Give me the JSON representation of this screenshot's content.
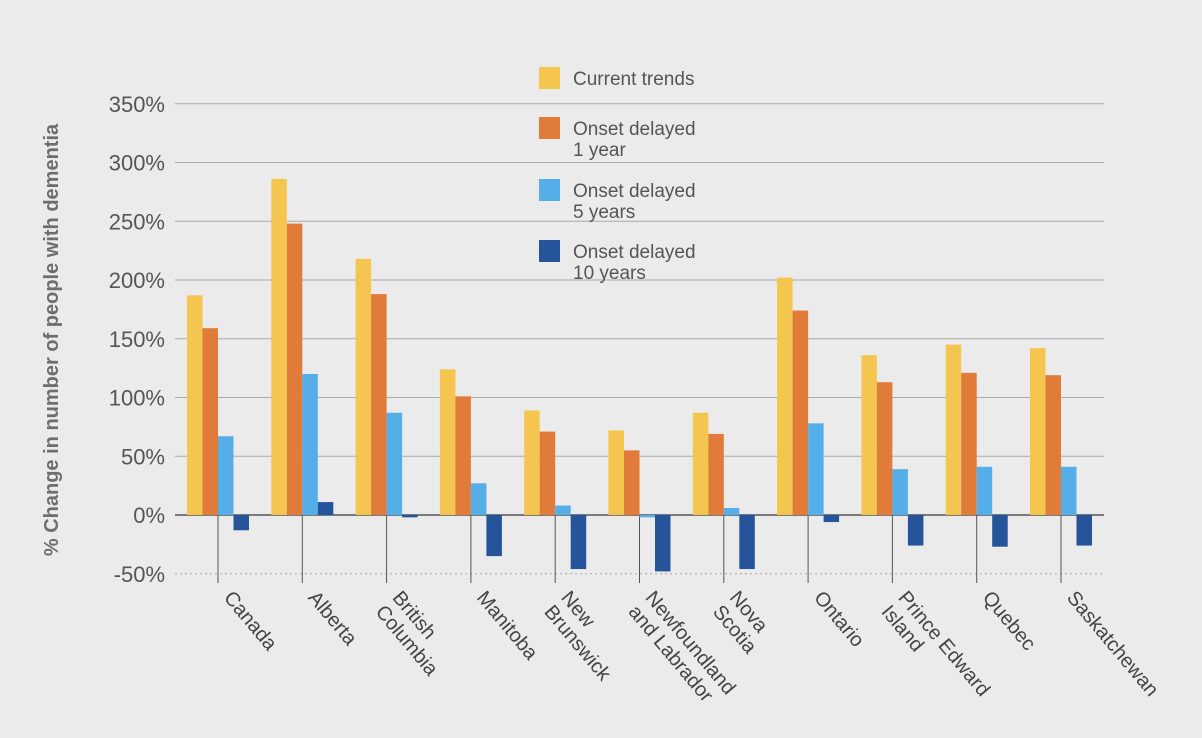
{
  "chart_data": {
    "type": "bar",
    "title": "",
    "xlabel": "",
    "ylabel": "% Change in number of people with dementia",
    "ylim": [
      -50,
      350
    ],
    "yticks": [
      350,
      300,
      250,
      200,
      150,
      100,
      50,
      0,
      -50
    ],
    "ytick_labels": [
      "350%",
      "300%",
      "250%",
      "200%",
      "150%",
      "100%",
      "50%",
      "0%",
      "-50%"
    ],
    "grid": true,
    "legend_position": "top-center",
    "categories": [
      "Canada",
      "Alberta",
      "British Columbia",
      "Manitoba",
      "New Brunswick",
      "Newfoundland and Labrador",
      "Nova Scotia",
      "Ontario",
      "Prince Edward Island",
      "Quebec",
      "Saskatchewan"
    ],
    "category_lines": [
      [
        "Canada"
      ],
      [
        "Alberta"
      ],
      [
        "British",
        "Columbia"
      ],
      [
        "Manitoba"
      ],
      [
        "New",
        "Brunswick"
      ],
      [
        "Newfoundland",
        "and Labrador"
      ],
      [
        "Nova",
        "Scotia"
      ],
      [
        "Ontario"
      ],
      [
        "Prince Edward",
        "Island"
      ],
      [
        "Quebec"
      ],
      [
        "Saskatchewan"
      ]
    ],
    "series": [
      {
        "name": "Current trends",
        "legend_lines": [
          "Current trends"
        ],
        "color": "#f5c64f",
        "values": [
          187,
          286,
          218,
          124,
          89,
          72,
          87,
          202,
          136,
          145,
          142
        ]
      },
      {
        "name": "Onset delayed 1 year",
        "legend_lines": [
          "Onset delayed",
          "1 year"
        ],
        "color": "#e07b39",
        "values": [
          159,
          248,
          188,
          101,
          71,
          55,
          69,
          174,
          113,
          121,
          119
        ]
      },
      {
        "name": "Onset delayed 5 years",
        "legend_lines": [
          "Onset delayed",
          "5 years"
        ],
        "color": "#55aee7",
        "values": [
          67,
          120,
          87,
          27,
          8,
          -2,
          6,
          78,
          39,
          41,
          41
        ]
      },
      {
        "name": "Onset delayed 10 years",
        "legend_lines": [
          "Onset delayed",
          "10 years"
        ],
        "color": "#25549a",
        "values": [
          -13,
          11,
          -2,
          -35,
          -46,
          -48,
          -46,
          -6,
          -26,
          -27,
          -26
        ]
      }
    ]
  }
}
